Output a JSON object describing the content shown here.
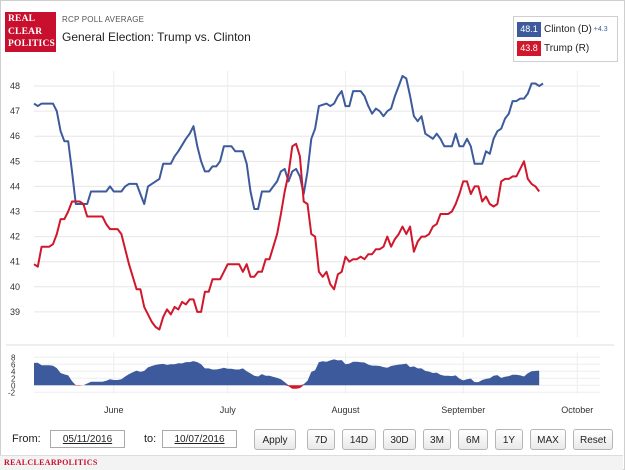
{
  "header": {
    "logo_lines": [
      "REAL",
      "CLEAR",
      "POLITICS"
    ],
    "subtitle": "RCP POLL AVERAGE",
    "title": "General Election: Trump vs. Clinton"
  },
  "legend": {
    "clinton": {
      "value": "48.1",
      "label": "Clinton (D)",
      "spread": "+4.3",
      "color": "#3d5a9c"
    },
    "trump": {
      "value": "43.8",
      "label": "Trump (R)",
      "color": "#d0172b"
    }
  },
  "controls": {
    "from_label": "From:",
    "from_value": "05/11/2016",
    "to_label": "to:",
    "to_value": "10/07/2016",
    "apply": "Apply",
    "ranges": [
      "7D",
      "14D",
      "30D",
      "3M",
      "6M",
      "1Y",
      "MAX",
      "Reset"
    ]
  },
  "footer": {
    "brand": "REALCLEARPOLITICS"
  },
  "chart_data": {
    "type": "line",
    "title": "General Election: Trump vs. Clinton",
    "x_unit": "days since 2016-05-11",
    "x_range": [
      0,
      149
    ],
    "ylim": [
      38,
      48.6
    ],
    "yticks": [
      "39",
      "40",
      "41",
      "42",
      "43",
      "44",
      "45",
      "46",
      "47",
      "48"
    ],
    "x_month_labels": [
      {
        "label": "June",
        "day": 21
      },
      {
        "label": "July",
        "day": 51
      },
      {
        "label": "August",
        "day": 82
      },
      {
        "label": "September",
        "day": 113
      },
      {
        "label": "October",
        "day": 143
      }
    ],
    "grid": true,
    "series": [
      {
        "name": "Clinton (D)",
        "color": "#3d5a9c",
        "points": [
          [
            0,
            47.3
          ],
          [
            1,
            47.2
          ],
          [
            2,
            47.3
          ],
          [
            4,
            47.3
          ],
          [
            5,
            47.3
          ],
          [
            6,
            47.0
          ],
          [
            7,
            46.2
          ],
          [
            8,
            45.8
          ],
          [
            9,
            45.8
          ],
          [
            10,
            44.6
          ],
          [
            11,
            43.3
          ],
          [
            13,
            43.3
          ],
          [
            14,
            43.3
          ],
          [
            15,
            43.8
          ],
          [
            17,
            43.8
          ],
          [
            18,
            43.8
          ],
          [
            19,
            43.8
          ],
          [
            20,
            44.0
          ],
          [
            21,
            43.8
          ],
          [
            23,
            43.8
          ],
          [
            24,
            44.0
          ],
          [
            25,
            44.1
          ],
          [
            27,
            44.1
          ],
          [
            28,
            43.7
          ],
          [
            29,
            43.3
          ],
          [
            30,
            44.0
          ],
          [
            31,
            44.1
          ],
          [
            33,
            44.3
          ],
          [
            34,
            44.9
          ],
          [
            36,
            44.9
          ],
          [
            37,
            45.2
          ],
          [
            38,
            45.4
          ],
          [
            40,
            45.9
          ],
          [
            41,
            46.1
          ],
          [
            42,
            46.4
          ],
          [
            43,
            45.6
          ],
          [
            44,
            45.0
          ],
          [
            45,
            44.6
          ],
          [
            46,
            44.6
          ],
          [
            47,
            44.8
          ],
          [
            48,
            44.8
          ],
          [
            49,
            45.0
          ],
          [
            50,
            45.6
          ],
          [
            51,
            45.6
          ],
          [
            52,
            45.6
          ],
          [
            53,
            45.4
          ],
          [
            55,
            45.4
          ],
          [
            56,
            44.9
          ],
          [
            57,
            43.8
          ],
          [
            58,
            43.1
          ],
          [
            59,
            43.1
          ],
          [
            60,
            43.8
          ],
          [
            62,
            43.8
          ],
          [
            63,
            44.0
          ],
          [
            64,
            44.2
          ],
          [
            65,
            44.6
          ],
          [
            66,
            44.7
          ],
          [
            67,
            44.2
          ],
          [
            68,
            44.6
          ],
          [
            69,
            44.7
          ],
          [
            70,
            44.4
          ],
          [
            71,
            43.7
          ],
          [
            72,
            44.6
          ],
          [
            73,
            45.9
          ],
          [
            74,
            46.3
          ],
          [
            75,
            47.2
          ],
          [
            77,
            47.3
          ],
          [
            78,
            47.2
          ],
          [
            79,
            47.3
          ],
          [
            80,
            47.6
          ],
          [
            81,
            47.8
          ],
          [
            82,
            47.2
          ],
          [
            83,
            47.2
          ],
          [
            84,
            47.8
          ],
          [
            86,
            47.8
          ],
          [
            87,
            47.6
          ],
          [
            88,
            47.2
          ],
          [
            89,
            46.9
          ],
          [
            90,
            47.1
          ],
          [
            91,
            47.0
          ],
          [
            92,
            46.8
          ],
          [
            93,
            47.0
          ],
          [
            94,
            47.1
          ],
          [
            95,
            47.6
          ],
          [
            96,
            48.0
          ],
          [
            97,
            48.4
          ],
          [
            98,
            48.3
          ],
          [
            99,
            47.6
          ],
          [
            100,
            46.8
          ],
          [
            101,
            46.6
          ],
          [
            102,
            46.8
          ],
          [
            103,
            46.1
          ],
          [
            104,
            46.0
          ],
          [
            105,
            45.9
          ],
          [
            106,
            46.1
          ],
          [
            107,
            45.9
          ],
          [
            108,
            45.6
          ],
          [
            110,
            45.6
          ],
          [
            111,
            46.1
          ],
          [
            112,
            45.6
          ],
          [
            113,
            45.6
          ],
          [
            114,
            45.9
          ],
          [
            115,
            45.6
          ],
          [
            116,
            44.9
          ],
          [
            117,
            44.9
          ],
          [
            118,
            44.9
          ],
          [
            119,
            45.4
          ],
          [
            120,
            45.3
          ],
          [
            121,
            45.9
          ],
          [
            122,
            46.2
          ],
          [
            123,
            46.3
          ],
          [
            124,
            46.7
          ],
          [
            125,
            46.9
          ],
          [
            126,
            47.4
          ],
          [
            127,
            47.4
          ],
          [
            128,
            47.5
          ],
          [
            129,
            47.5
          ],
          [
            130,
            47.7
          ],
          [
            131,
            48.1
          ],
          [
            132,
            48.1
          ],
          [
            133,
            48.0
          ],
          [
            134,
            48.1
          ]
        ]
      },
      {
        "name": "Trump (R)",
        "color": "#d0172b",
        "points": [
          [
            0,
            40.9
          ],
          [
            1,
            40.8
          ],
          [
            2,
            41.6
          ],
          [
            4,
            41.6
          ],
          [
            5,
            41.7
          ],
          [
            6,
            42.1
          ],
          [
            7,
            42.7
          ],
          [
            8,
            42.7
          ],
          [
            9,
            43.0
          ],
          [
            10,
            43.4
          ],
          [
            12,
            43.4
          ],
          [
            13,
            43.3
          ],
          [
            14,
            42.8
          ],
          [
            17,
            42.8
          ],
          [
            18,
            42.8
          ],
          [
            19,
            42.5
          ],
          [
            20,
            42.3
          ],
          [
            22,
            42.3
          ],
          [
            23,
            42.1
          ],
          [
            24,
            41.5
          ],
          [
            25,
            40.9
          ],
          [
            26,
            40.4
          ],
          [
            27,
            39.9
          ],
          [
            28,
            39.9
          ],
          [
            29,
            39.2
          ],
          [
            30,
            38.9
          ],
          [
            31,
            38.6
          ],
          [
            32,
            38.4
          ],
          [
            33,
            38.3
          ],
          [
            34,
            38.8
          ],
          [
            35,
            39.1
          ],
          [
            36,
            38.9
          ],
          [
            37,
            39.2
          ],
          [
            38,
            39.1
          ],
          [
            39,
            39.4
          ],
          [
            40,
            39.3
          ],
          [
            41,
            39.5
          ],
          [
            42,
            39.5
          ],
          [
            43,
            39.0
          ],
          [
            44,
            39.0
          ],
          [
            45,
            39.8
          ],
          [
            46,
            39.8
          ],
          [
            47,
            40.3
          ],
          [
            49,
            40.3
          ],
          [
            50,
            40.6
          ],
          [
            51,
            40.9
          ],
          [
            53,
            40.9
          ],
          [
            54,
            40.9
          ],
          [
            55,
            40.6
          ],
          [
            56,
            40.9
          ],
          [
            57,
            40.4
          ],
          [
            58,
            40.4
          ],
          [
            59,
            40.6
          ],
          [
            60,
            40.6
          ],
          [
            61,
            41.1
          ],
          [
            62,
            41.1
          ],
          [
            63,
            41.6
          ],
          [
            64,
            42.1
          ],
          [
            65,
            42.9
          ],
          [
            66,
            43.8
          ],
          [
            67,
            44.5
          ],
          [
            68,
            45.6
          ],
          [
            69,
            45.7
          ],
          [
            70,
            45.2
          ],
          [
            71,
            43.4
          ],
          [
            72,
            43.3
          ],
          [
            73,
            42.1
          ],
          [
            74,
            42.0
          ],
          [
            75,
            40.6
          ],
          [
            76,
            40.4
          ],
          [
            77,
            40.6
          ],
          [
            78,
            40.1
          ],
          [
            79,
            39.9
          ],
          [
            80,
            40.5
          ],
          [
            81,
            40.6
          ],
          [
            82,
            41.2
          ],
          [
            83,
            41.0
          ],
          [
            84,
            41.1
          ],
          [
            85,
            41.1
          ],
          [
            86,
            41.2
          ],
          [
            87,
            41.1
          ],
          [
            88,
            41.3
          ],
          [
            89,
            41.3
          ],
          [
            90,
            41.5
          ],
          [
            91,
            41.5
          ],
          [
            92,
            41.6
          ],
          [
            93,
            42.0
          ],
          [
            94,
            41.6
          ],
          [
            95,
            41.9
          ],
          [
            96,
            42.1
          ],
          [
            97,
            42.4
          ],
          [
            98,
            42.1
          ],
          [
            99,
            42.4
          ],
          [
            100,
            41.4
          ],
          [
            101,
            41.8
          ],
          [
            102,
            42.0
          ],
          [
            103,
            42.0
          ],
          [
            104,
            42.1
          ],
          [
            105,
            42.4
          ],
          [
            106,
            42.5
          ],
          [
            107,
            42.9
          ],
          [
            108,
            42.9
          ],
          [
            109,
            42.9
          ],
          [
            110,
            43.0
          ],
          [
            111,
            43.3
          ],
          [
            112,
            43.7
          ],
          [
            113,
            44.2
          ],
          [
            114,
            44.2
          ],
          [
            115,
            43.7
          ],
          [
            116,
            44.0
          ],
          [
            117,
            44.0
          ],
          [
            118,
            43.4
          ],
          [
            119,
            43.6
          ],
          [
            120,
            43.3
          ],
          [
            121,
            43.2
          ],
          [
            122,
            43.3
          ],
          [
            123,
            44.2
          ],
          [
            124,
            44.3
          ],
          [
            125,
            44.3
          ],
          [
            126,
            44.4
          ],
          [
            127,
            44.4
          ],
          [
            128,
            44.7
          ],
          [
            129,
            45.0
          ],
          [
            130,
            44.3
          ],
          [
            131,
            44.1
          ],
          [
            132,
            44.0
          ],
          [
            133,
            43.8
          ]
        ]
      }
    ],
    "spread_chart": {
      "yticks": [
        "8",
        "6",
        "4",
        "2",
        "0",
        "-2"
      ],
      "ylim": [
        -2.5,
        9.5
      ],
      "color": "#3d5a9c",
      "negative_color": "#d0172b"
    }
  }
}
